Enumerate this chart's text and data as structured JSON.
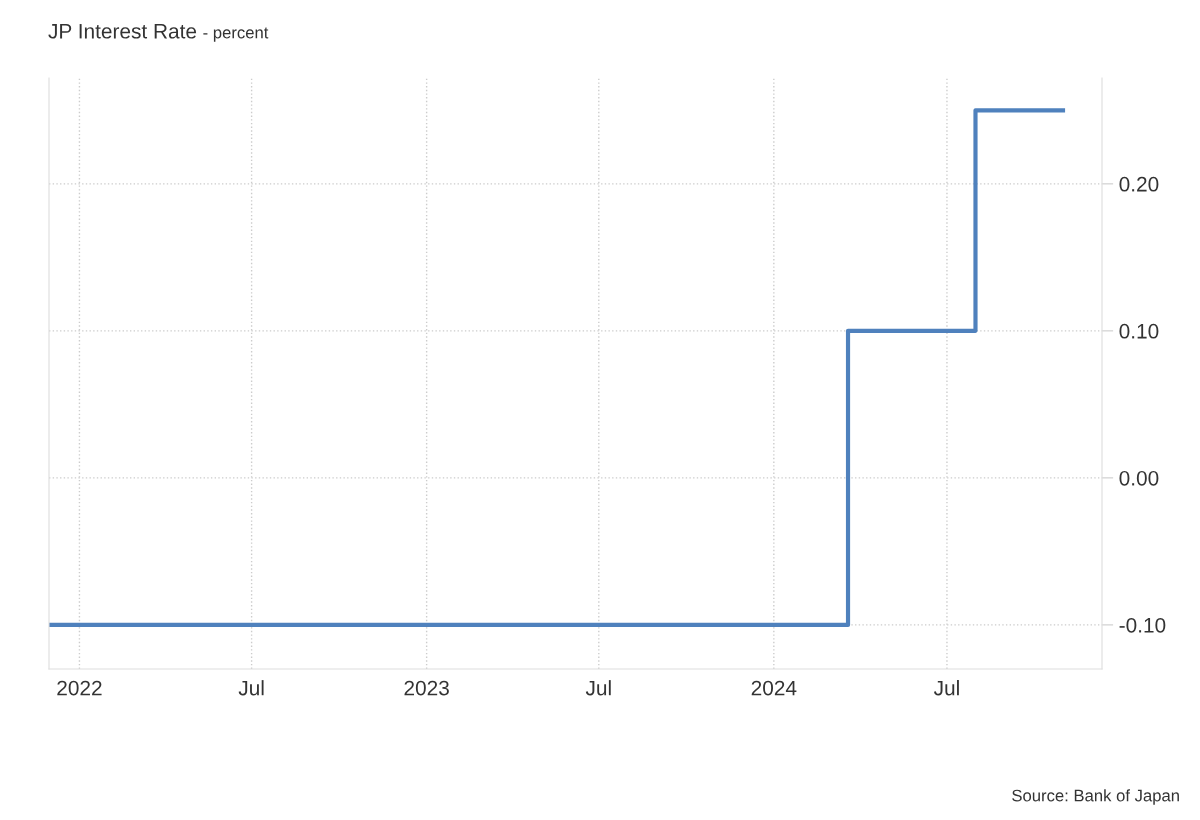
{
  "chart_data": {
    "type": "step",
    "title": "JP Interest Rate",
    "subtitle": "- percent",
    "x": [
      "2021-11-30",
      "2024-03-19",
      "2024-07-31",
      "2024-10-31"
    ],
    "series": [
      {
        "color": "#4f81bd",
        "values": [
          -0.1,
          0.1,
          0.25,
          0.25
        ]
      }
    ],
    "xlim": [
      "2021-11-30",
      "2024-12-11"
    ],
    "xticks": [
      {
        "value": "2022-01-01",
        "label": "2022"
      },
      {
        "value": "2022-07-01",
        "label": "Jul"
      },
      {
        "value": "2023-01-01",
        "label": "2023"
      },
      {
        "value": "2023-07-01",
        "label": "Jul"
      },
      {
        "value": "2024-01-01",
        "label": "2024"
      },
      {
        "value": "2024-07-01",
        "label": "Jul"
      }
    ],
    "ylim": [
      -0.13,
      0.272
    ],
    "yticks": [
      {
        "value": -0.1,
        "label": "-0.10"
      },
      {
        "value": 0.0,
        "label": "0.00"
      },
      {
        "value": 0.1,
        "label": "0.10"
      },
      {
        "value": 0.2,
        "label": "0.20"
      }
    ],
    "grid": true,
    "line_style": "solid",
    "annotations": [
      "Source: Bank of Japan"
    ]
  }
}
